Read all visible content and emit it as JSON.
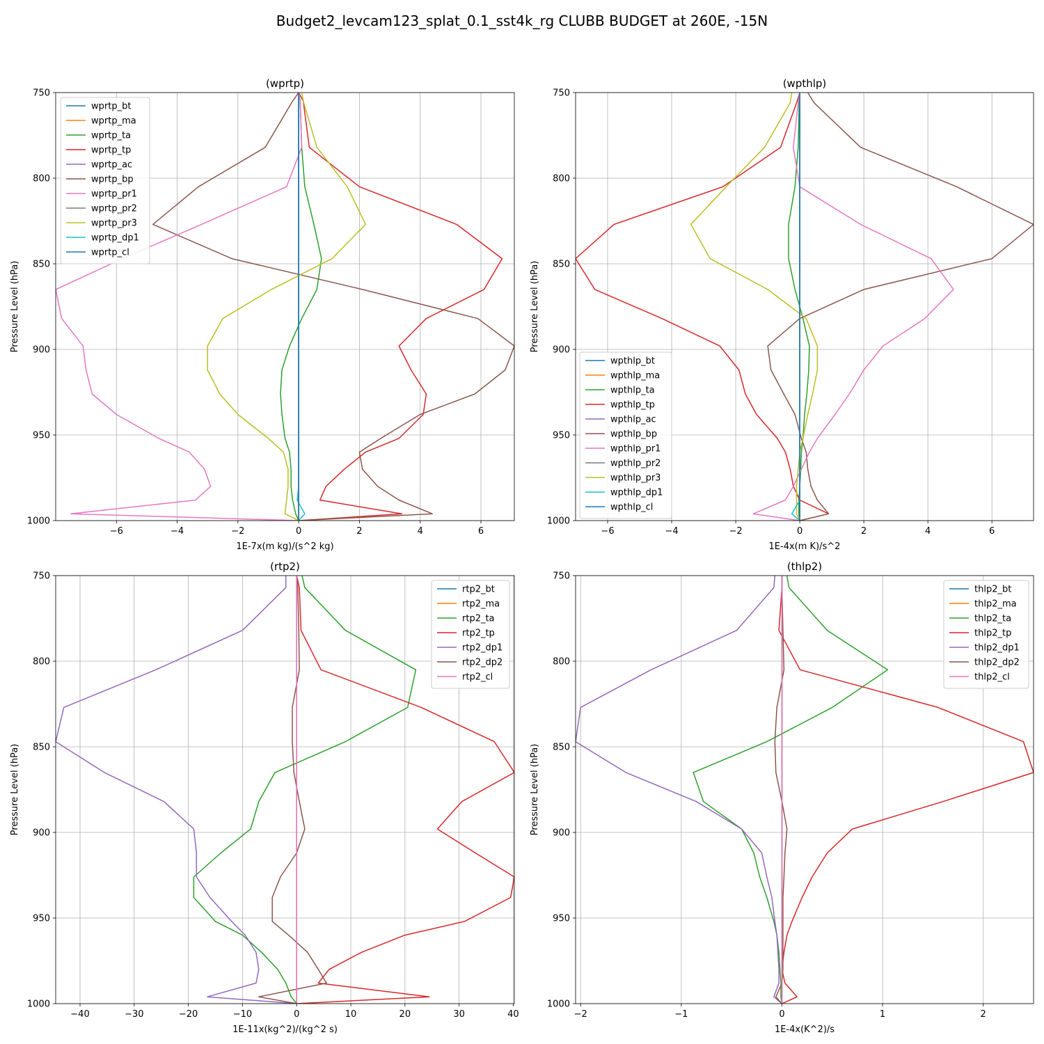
{
  "figure": {
    "title": "Budget2_levcam123_splat_0.1_sst4k_rg CLUBB BUDGET at 260E, -15N"
  },
  "chart_data": [
    {
      "type": "line",
      "title": "(wprtp)",
      "xlabel": "1E-7x(m kg)/(s^2 kg)",
      "ylabel": "Pressure Level (hPa)",
      "xlim": [
        -8.0,
        7.1
      ],
      "ylim": [
        1000,
        750
      ],
      "xticks": [
        -6,
        -4,
        -2,
        0,
        2,
        4,
        6
      ],
      "yticks": [
        750,
        800,
        850,
        900,
        950,
        1000
      ],
      "grid": true,
      "legend": "top-left",
      "y": [
        750,
        755,
        782,
        805,
        827,
        847,
        865,
        882,
        898,
        912,
        926,
        938,
        952,
        960,
        970,
        980,
        988,
        996,
        1000
      ],
      "series": [
        {
          "name": "wprtp_bt",
          "color": "#1f77b4",
          "values": [
            0,
            0,
            0,
            0,
            0,
            0,
            0,
            0,
            0,
            0,
            0,
            0,
            0,
            0,
            0,
            0,
            0,
            0,
            0
          ]
        },
        {
          "name": "wprtp_ma",
          "color": "#ff7f0e",
          "values": [
            0,
            0,
            0,
            0,
            0,
            0,
            0,
            0,
            0,
            0,
            0,
            0,
            0,
            0,
            0,
            0,
            0,
            0,
            0
          ]
        },
        {
          "name": "wprtp_ta",
          "color": "#2ca02c",
          "values": [
            0.0,
            0.05,
            0.1,
            0.2,
            0.5,
            0.75,
            0.6,
            0.1,
            -0.3,
            -0.55,
            -0.6,
            -0.55,
            -0.45,
            -0.3,
            -0.25,
            -0.25,
            -0.2,
            -0.1,
            0.0
          ]
        },
        {
          "name": "wprtp_tp",
          "color": "#d62728",
          "values": [
            0.0,
            0.15,
            0.35,
            2.0,
            5.2,
            6.7,
            6.1,
            4.2,
            3.3,
            3.7,
            4.2,
            4.1,
            3.3,
            2.2,
            1.5,
            0.9,
            0.7,
            3.4,
            0.0
          ]
        },
        {
          "name": "wprtp_ac",
          "color": "#9467bd",
          "values": [
            0,
            0,
            0,
            0,
            0,
            0,
            0,
            0,
            0,
            0,
            0,
            0,
            0,
            0,
            0,
            0,
            0,
            0,
            0
          ]
        },
        {
          "name": "wprtp_bp",
          "color": "#8c564b",
          "values": [
            0.0,
            -0.2,
            -1.1,
            -3.3,
            -4.8,
            -2.2,
            2.1,
            5.9,
            7.1,
            6.8,
            5.8,
            4.0,
            2.7,
            2.0,
            2.1,
            2.6,
            3.3,
            4.4,
            0.0
          ]
        },
        {
          "name": "wprtp_pr1",
          "color": "#e377c2",
          "values": [
            0.0,
            0.05,
            0.1,
            -0.4,
            -3.2,
            -5.8,
            -8.0,
            -7.8,
            -7.1,
            -7.0,
            -6.8,
            -6.0,
            -4.6,
            -3.6,
            -3.1,
            -2.9,
            -3.4,
            -7.5,
            0.0
          ]
        },
        {
          "name": "wprtp_pr2",
          "color": "#7f7f7f",
          "values": [
            0,
            0,
            0,
            0,
            0,
            0,
            0,
            0,
            0,
            0,
            0,
            0,
            0,
            0,
            0,
            0,
            0,
            0,
            0
          ]
        },
        {
          "name": "wprtp_pr3",
          "color": "#bcbd22",
          "values": [
            0.1,
            0.15,
            0.6,
            1.6,
            2.2,
            1.1,
            -0.9,
            -2.5,
            -3.0,
            -3.0,
            -2.6,
            -2.0,
            -1.0,
            -0.5,
            -0.35,
            -0.35,
            -0.4,
            -0.45,
            0.0
          ]
        },
        {
          "name": "wprtp_dp1",
          "color": "#17becf",
          "values": [
            0,
            0,
            0,
            0,
            0,
            0,
            0,
            0,
            0,
            0,
            0,
            0,
            0,
            0,
            0,
            0,
            -0.05,
            0.2,
            0.0
          ]
        },
        {
          "name": "wprtp_cl",
          "color": "#1f77b4",
          "values": [
            0,
            0,
            0,
            0,
            0,
            0,
            0,
            0,
            0,
            0,
            0,
            0,
            0,
            0,
            0,
            0,
            0,
            0,
            0
          ]
        }
      ]
    },
    {
      "type": "line",
      "title": "(wpthlp)",
      "xlabel": "1E-4x(m K)/s^2",
      "ylabel": "Pressure Level (hPa)",
      "xlim": [
        -7.0,
        7.3
      ],
      "ylim": [
        1000,
        750
      ],
      "xticks": [
        -6,
        -4,
        -2,
        0,
        2,
        4,
        6
      ],
      "yticks": [
        750,
        800,
        850,
        900,
        950,
        1000
      ],
      "grid": true,
      "legend": "lower-left",
      "y": [
        750,
        756,
        782,
        805,
        827,
        847,
        865,
        882,
        898,
        912,
        926,
        938,
        952,
        960,
        970,
        980,
        988,
        996,
        1000
      ],
      "series": [
        {
          "name": "wpthlp_bt",
          "color": "#1f77b4",
          "values": [
            0,
            0,
            0,
            0,
            0,
            0,
            0,
            0,
            0,
            0,
            0,
            0,
            0,
            0,
            0,
            0,
            0,
            0,
            0
          ]
        },
        {
          "name": "wpthlp_ma",
          "color": "#ff7f0e",
          "values": [
            0,
            0,
            0,
            0,
            0,
            0,
            0,
            0,
            0,
            0,
            0,
            0,
            0,
            0,
            0,
            0,
            0,
            0,
            0
          ]
        },
        {
          "name": "wpthlp_ta",
          "color": "#2ca02c",
          "values": [
            0.0,
            -0.02,
            -0.05,
            -0.15,
            -0.35,
            -0.35,
            -0.15,
            0.1,
            0.3,
            0.28,
            0.22,
            0.15,
            0.1,
            0.05,
            0.03,
            0.0,
            -0.03,
            -0.03,
            0.0
          ]
        },
        {
          "name": "wpthlp_tp",
          "color": "#d62728",
          "values": [
            0.0,
            -0.1,
            -0.6,
            -2.4,
            -5.8,
            -7.0,
            -6.4,
            -4.3,
            -2.5,
            -1.9,
            -1.7,
            -1.35,
            -0.7,
            -0.45,
            -0.3,
            -0.2,
            0.0,
            0.9,
            0.0
          ]
        },
        {
          "name": "wpthlp_ac",
          "color": "#9467bd",
          "values": [
            0,
            0,
            0,
            0,
            0,
            0,
            0,
            0,
            0,
            0,
            0,
            0,
            0,
            0,
            0,
            0,
            0,
            0,
            0
          ]
        },
        {
          "name": "wpthlp_bp",
          "color": "#8c564b",
          "values": [
            0.25,
            0.45,
            1.9,
            4.9,
            7.3,
            6.0,
            2.0,
            0.0,
            -1.0,
            -0.9,
            -0.5,
            -0.15,
            0.05,
            0.2,
            0.25,
            0.35,
            0.55,
            0.9,
            0.0
          ]
        },
        {
          "name": "wpthlp_pr1",
          "color": "#e377c2",
          "values": [
            0.0,
            -0.05,
            -0.2,
            0.0,
            1.9,
            4.1,
            4.8,
            3.9,
            2.6,
            2.0,
            1.55,
            1.1,
            0.55,
            0.3,
            0.05,
            -0.2,
            -0.45,
            -1.45,
            0.0
          ]
        },
        {
          "name": "wpthlp_pr2",
          "color": "#7f7f7f",
          "values": [
            0,
            0,
            0,
            0,
            0,
            0,
            0,
            0,
            0,
            0,
            0,
            0,
            0,
            0,
            0,
            0,
            0,
            0,
            0
          ]
        },
        {
          "name": "wpthlp_pr3",
          "color": "#bcbd22",
          "values": [
            -0.25,
            -0.3,
            -1.1,
            -2.3,
            -3.4,
            -2.8,
            -1.0,
            0.2,
            0.55,
            0.55,
            0.4,
            0.25,
            0.1,
            0.0,
            -0.05,
            -0.1,
            -0.1,
            -0.1,
            0.0
          ]
        },
        {
          "name": "wpthlp_dp1",
          "color": "#17becf",
          "values": [
            0,
            0,
            0,
            0,
            0,
            0,
            0,
            0,
            0,
            0,
            0,
            0,
            0,
            0,
            0,
            0,
            0,
            -0.25,
            0.0
          ]
        },
        {
          "name": "wpthlp_cl",
          "color": "#1f77b4",
          "values": [
            0,
            0,
            0,
            0,
            0,
            0,
            0,
            0,
            0,
            0,
            0,
            0,
            0,
            0,
            0,
            0,
            0,
            0,
            0
          ]
        }
      ]
    },
    {
      "type": "line",
      "title": "(rtp2)",
      "xlabel": "1E-11x(kg^2)/(kg^2 s)",
      "ylabel": "Pressure Level (hPa)",
      "xlim": [
        -44.5,
        40.2
      ],
      "ylim": [
        1000,
        750
      ],
      "xticks": [
        -40,
        -30,
        -20,
        -10,
        0,
        10,
        20,
        30,
        40
      ],
      "yticks": [
        750,
        800,
        850,
        900,
        950,
        1000
      ],
      "grid": true,
      "legend": "top-right",
      "y": [
        750,
        757,
        782,
        805,
        827,
        847,
        865,
        882,
        898,
        912,
        926,
        938,
        952,
        960,
        970,
        980,
        988,
        996,
        1000
      ],
      "series": [
        {
          "name": "rtp2_bt",
          "color": "#1f77b4",
          "values": [
            0,
            0,
            0,
            0,
            0,
            0,
            0,
            0,
            0,
            0,
            0,
            0,
            0,
            0,
            0,
            0,
            0,
            0,
            0
          ]
        },
        {
          "name": "rtp2_ma",
          "color": "#ff7f0e",
          "values": [
            0,
            0,
            0,
            0,
            0,
            0,
            0,
            0,
            0,
            0,
            0,
            0,
            0,
            0,
            0,
            0,
            0,
            0,
            0
          ]
        },
        {
          "name": "rtp2_ta",
          "color": "#2ca02c",
          "values": [
            1.0,
            1.5,
            9.0,
            22.0,
            20.5,
            9.0,
            -4.0,
            -7.0,
            -8.5,
            -14.0,
            -19.0,
            -19.0,
            -15.0,
            -10.0,
            -6.5,
            -3.5,
            -2.0,
            -1.0,
            0.0
          ]
        },
        {
          "name": "rtp2_tp",
          "color": "#d62728",
          "values": [
            0.0,
            0.5,
            0.8,
            4.5,
            23.0,
            36.5,
            40.2,
            30.5,
            26.0,
            33.0,
            40.2,
            39.5,
            31.0,
            20.0,
            12.0,
            6.0,
            4.0,
            24.5,
            0.0
          ]
        },
        {
          "name": "rtp2_dp1",
          "color": "#9467bd",
          "values": [
            -2.0,
            -2.0,
            -10.0,
            -26.0,
            -43.0,
            -44.5,
            -35.5,
            -24.5,
            -19.0,
            -18.5,
            -18.5,
            -16.0,
            -12.0,
            -9.5,
            -7.5,
            -7.0,
            -7.5,
            -16.5,
            0.0
          ]
        },
        {
          "name": "rtp2_dp2",
          "color": "#8c564b",
          "values": [
            0.0,
            0.2,
            0.4,
            0.5,
            -0.8,
            -0.8,
            -0.5,
            0.5,
            1.5,
            0.0,
            -3.0,
            -4.5,
            -4.5,
            -1.5,
            2.0,
            4.0,
            5.5,
            -7.0,
            0.0
          ]
        },
        {
          "name": "rtp2_cl",
          "color": "#e377c2",
          "values": [
            0,
            0,
            0,
            0,
            0,
            0,
            0,
            0,
            0,
            0,
            0,
            0,
            0,
            0,
            0,
            0,
            0,
            0,
            0
          ]
        }
      ]
    },
    {
      "type": "line",
      "title": "(thlp2)",
      "xlabel": "1E-4x(K^2)/s",
      "ylabel": "Pressure Level (hPa)",
      "xlim": [
        -2.05,
        2.5
      ],
      "ylim": [
        1000,
        750
      ],
      "xticks": [
        -2,
        -1,
        0,
        1,
        2
      ],
      "yticks": [
        750,
        800,
        850,
        900,
        950,
        1000
      ],
      "grid": true,
      "legend": "top-right",
      "y": [
        750,
        757,
        782,
        805,
        827,
        847,
        865,
        882,
        898,
        912,
        926,
        938,
        952,
        960,
        970,
        980,
        988,
        996,
        1000
      ],
      "series": [
        {
          "name": "thlp2_bt",
          "color": "#1f77b4",
          "values": [
            0,
            0,
            0,
            0,
            0,
            0,
            0,
            0,
            0,
            0,
            0,
            0,
            0,
            0,
            0,
            0,
            0,
            0,
            0
          ]
        },
        {
          "name": "thlp2_ma",
          "color": "#ff7f0e",
          "values": [
            0,
            0,
            0,
            0,
            0,
            0,
            0,
            0,
            0,
            0,
            0,
            0,
            0,
            0,
            0,
            0,
            0,
            0,
            0
          ]
        },
        {
          "name": "thlp2_ta",
          "color": "#2ca02c",
          "values": [
            0.05,
            0.07,
            0.45,
            1.05,
            0.5,
            -0.15,
            -0.88,
            -0.78,
            -0.4,
            -0.28,
            -0.22,
            -0.15,
            -0.08,
            -0.05,
            -0.03,
            -0.02,
            -0.01,
            -0.01,
            0.0
          ]
        },
        {
          "name": "thlp2_tp",
          "color": "#d62728",
          "values": [
            0.0,
            0.0,
            -0.03,
            0.18,
            1.55,
            2.4,
            2.5,
            1.6,
            0.7,
            0.45,
            0.3,
            0.2,
            0.1,
            0.05,
            0.02,
            0.0,
            0.03,
            0.15,
            0.0
          ]
        },
        {
          "name": "thlp2_dp1",
          "color": "#9467bd",
          "values": [
            -0.07,
            -0.08,
            -0.45,
            -1.3,
            -2.0,
            -2.05,
            -1.55,
            -0.85,
            -0.4,
            -0.2,
            -0.15,
            -0.1,
            -0.07,
            -0.05,
            -0.04,
            -0.03,
            -0.03,
            -0.08,
            0.0
          ]
        },
        {
          "name": "thlp2_dp2",
          "color": "#8c564b",
          "values": [
            0.0,
            0.0,
            0.01,
            0.02,
            -0.05,
            -0.07,
            -0.06,
            0.0,
            0.05,
            0.03,
            0.02,
            0.01,
            0.01,
            0.01,
            0.01,
            0.01,
            0.0,
            -0.06,
            0.0
          ]
        },
        {
          "name": "thlp2_cl",
          "color": "#e377c2",
          "values": [
            0,
            0,
            0,
            0,
            0,
            0,
            0,
            0,
            0,
            0,
            0,
            0,
            0,
            0,
            0,
            0,
            0,
            0,
            0
          ]
        }
      ]
    }
  ]
}
